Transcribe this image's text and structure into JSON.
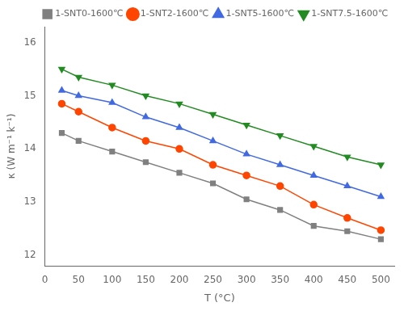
{
  "chart_data": {
    "type": "line",
    "xlabel": "T (°C)",
    "ylabel": "κ (W m⁻¹ k⁻¹)",
    "x": [
      25,
      50,
      100,
      150,
      200,
      250,
      300,
      350,
      400,
      450,
      500
    ],
    "series": [
      {
        "name": "1-SNT0-1600℃",
        "color": "#808080",
        "marker": "square",
        "values": [
          14.3,
          14.15,
          13.95,
          13.75,
          13.55,
          13.35,
          13.05,
          12.85,
          12.55,
          12.45,
          12.3
        ]
      },
      {
        "name": "1-SNT2-1600℃",
        "color": "#FF4500",
        "marker": "circle",
        "values": [
          14.85,
          14.7,
          14.4,
          14.15,
          14.0,
          13.7,
          13.5,
          13.3,
          12.95,
          12.7,
          12.47
        ]
      },
      {
        "name": "1-SNT5-1600℃",
        "color": "#4169E1",
        "marker": "triangle-up",
        "values": [
          15.1,
          15.0,
          14.87,
          14.6,
          14.4,
          14.15,
          13.9,
          13.7,
          13.5,
          13.3,
          13.1
        ]
      },
      {
        "name": "1-SNT7.5-1600℃",
        "color": "#228B22",
        "marker": "triangle-down",
        "values": [
          15.5,
          15.35,
          15.2,
          15.0,
          14.85,
          14.65,
          14.45,
          14.25,
          14.05,
          13.85,
          13.7
        ]
      }
    ],
    "xlim": [
      0,
      520
    ],
    "ylim": [
      11.8,
      16.3
    ],
    "xticks": [
      0,
      50,
      100,
      150,
      200,
      250,
      300,
      350,
      400,
      450,
      500
    ],
    "yticks": [
      12,
      13,
      14,
      15,
      16
    ],
    "grid": false,
    "legend": "upper right"
  }
}
